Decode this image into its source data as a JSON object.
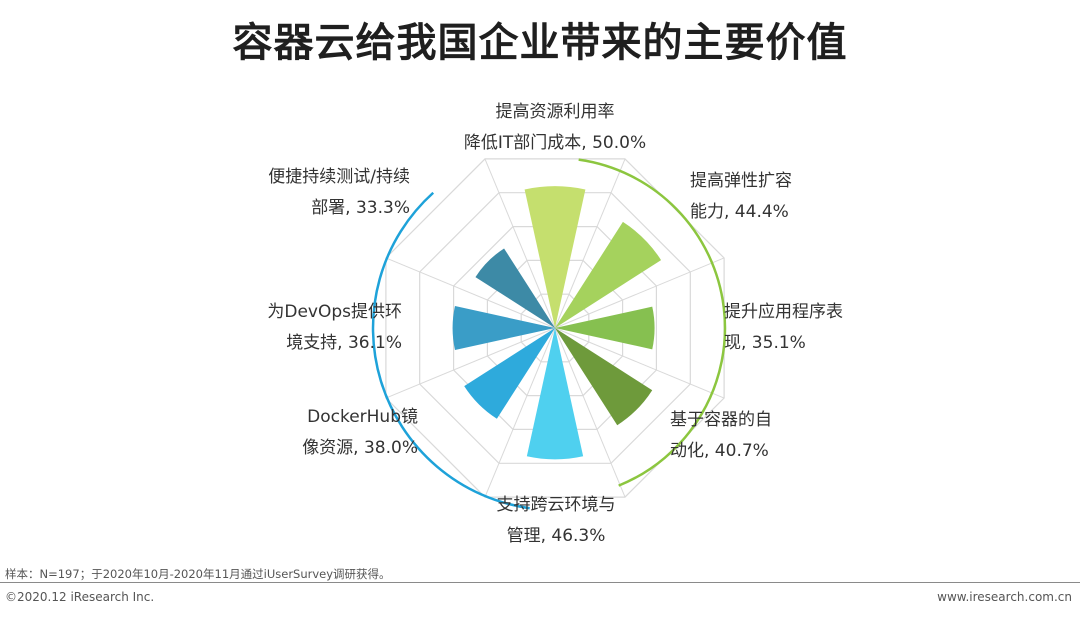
{
  "title": "容器云给我国企业带来的主要价值",
  "chart_data": {
    "type": "polar-area",
    "title": "容器云给我国企业带来的主要价值",
    "unit": "%",
    "max": 100,
    "categories": [
      {
        "line1": "提高资源利用率",
        "line2": "降低IT部门成本, 50.0%",
        "value": 50.0,
        "color": "#c5df6e"
      },
      {
        "line1": "提高弹性扩容",
        "line2": "能力, 44.4%",
        "value": 44.4,
        "color": "#a5d25d"
      },
      {
        "line1": "提升应用程序表",
        "line2": "现, 35.1%",
        "value": 35.1,
        "color": "#86c050"
      },
      {
        "line1": "基于容器的自",
        "line2": "动化, 40.7%",
        "value": 40.7,
        "color": "#6e9a3b"
      },
      {
        "line1": "支持跨云环境与",
        "line2": "管理, 46.3%",
        "value": 46.3,
        "color": "#4fd0ef"
      },
      {
        "line1": "DockerHub镜",
        "line2": "像资源, 38.0%",
        "value": 38.0,
        "color": "#2eaadc"
      },
      {
        "line1": "为DevOps提供环",
        "line2": "境支持, 36.1%",
        "value": 36.1,
        "color": "#3a9dc7"
      },
      {
        "line1": "便捷持续测试/持续",
        "line2": "部署, 33.3%",
        "value": 33.3,
        "color": "#3d8aa6"
      }
    ],
    "grid": true
  },
  "colors": {
    "green_arc": "#8cc63f",
    "blue_arc": "#1ea2d9",
    "grid": "#d9d9d9"
  },
  "footer": {
    "note": "样本：N=197；于2020年10月-2020年11月通过iUserSurvey调研获得。",
    "copyright": "©2020.12 iResearch Inc.",
    "website": "www.iresearch.com.cn"
  }
}
